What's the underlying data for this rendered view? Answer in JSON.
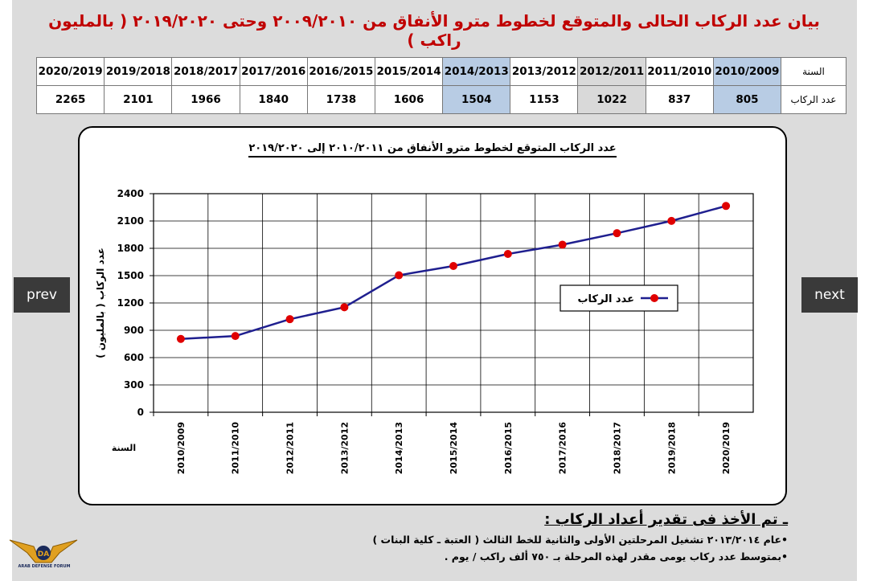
{
  "title": "بيان عدد الركاب الحالى والمتوقع لخطوط مترو الأنفاق من ٢٠٠٩/٢٠١٠ وحتى ٢٠١٩/٢٠٢٠ ( بالمليون راكب )",
  "table": {
    "year_label": "السنة",
    "count_label": "عدد الركاب",
    "years": [
      "2010/2009",
      "2011/2010",
      "2012/2011",
      "2013/2012",
      "2014/2013",
      "2015/2014",
      "2016/2015",
      "2017/2016",
      "2018/2017",
      "2019/2018",
      "2020/2019"
    ],
    "values": [
      "805",
      "837",
      "1022",
      "1153",
      "1504",
      "1606",
      "1738",
      "1840",
      "1966",
      "2101",
      "2265"
    ],
    "highlight": [
      "blue",
      "",
      "gray",
      "",
      "blue",
      "",
      "",
      "",
      "",
      "",
      ""
    ]
  },
  "chart_data": {
    "type": "line",
    "title": "عدد الركاب المتوقع لخطوط مترو الأنفاق من ٢٠١٠/٢٠١١ إلى ٢٠١٩/٢٠٢٠",
    "ylabel": "عدد الركاب ( بالمليون )",
    "xlabel": "السنة",
    "categories": [
      "2010/2009",
      "2011/2010",
      "2012/2011",
      "2013/2012",
      "2014/2013",
      "2015/2014",
      "2016/2015",
      "2017/2016",
      "2018/2017",
      "2019/2018",
      "2020/2019"
    ],
    "series": [
      {
        "name": "عدد الركاب",
        "values": [
          805,
          837,
          1022,
          1153,
          1504,
          1606,
          1738,
          1840,
          1966,
          2101,
          2265
        ],
        "color": "#1f1f8f",
        "marker_color": "#e00000"
      }
    ],
    "ylim": [
      0,
      2400
    ],
    "yticks": [
      0,
      300,
      600,
      900,
      1200,
      1500,
      1800,
      2100,
      2400
    ],
    "grid": true,
    "legend": "center-right"
  },
  "nav": {
    "prev": "prev",
    "next": "next"
  },
  "notes": {
    "heading": "ـ تم الأخذ فى تقدير أعداد الركاب :",
    "lines": [
      "•عام ٢٠١٣/٢٠١٤ تشغيل المرحلتين الأولى والثانية للخط الثالث ( العتبة ـ كلية البنات )",
      "•بمتوسط عدد ركاب يومى مقدر لهذه المرحلة بـ ٧٥٠ ألف راكب / يوم ."
    ]
  },
  "logo": {
    "text": "ARAB DEFENSE FORUM",
    "initials": "DA"
  }
}
